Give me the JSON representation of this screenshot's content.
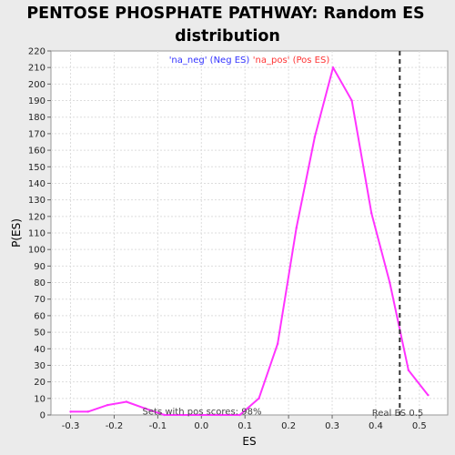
{
  "chart_data": {
    "type": "line",
    "title_lines": [
      "PENTOSE PHOSPHATE PATHWAY: Random ES",
      "distribution"
    ],
    "xlabel": "ES",
    "ylabel": "P(ES)",
    "xlim": [
      -0.345,
      0.565
    ],
    "ylim": [
      0,
      220
    ],
    "xticks": [
      -0.3,
      -0.2,
      -0.1,
      0.0,
      0.1,
      0.2,
      0.3,
      0.4,
      0.5
    ],
    "yticks": [
      0,
      10,
      20,
      30,
      40,
      50,
      60,
      70,
      80,
      90,
      100,
      110,
      120,
      130,
      140,
      150,
      160,
      170,
      180,
      190,
      200,
      210,
      220
    ],
    "grid": true,
    "legend": {
      "placement": "top-center",
      "entries": [
        {
          "label": "'na_neg' (Neg ES)",
          "color": "#3333ff"
        },
        {
          "label": "'na_pos' (Pos ES)",
          "color": "#ff3333"
        }
      ]
    },
    "series": [
      {
        "color": "#ff33ff",
        "x": [
          -0.3,
          -0.26,
          -0.215,
          -0.172,
          -0.13,
          -0.085,
          -0.042,
          0.002,
          0.045,
          0.088,
          0.132,
          0.175,
          0.218,
          0.26,
          0.302,
          0.345,
          0.39,
          0.432,
          0.475,
          0.52
        ],
        "y": [
          2,
          2,
          6,
          8,
          4,
          0,
          0,
          0,
          0,
          0,
          10,
          43,
          113,
          168,
          210,
          190,
          122,
          80,
          27,
          12
        ]
      }
    ],
    "real_es": {
      "value": 0.455,
      "label": "Real ES 0.5",
      "color": "#333333",
      "style": "dashed"
    },
    "annotation": "Sets with pos scores: 98%"
  }
}
